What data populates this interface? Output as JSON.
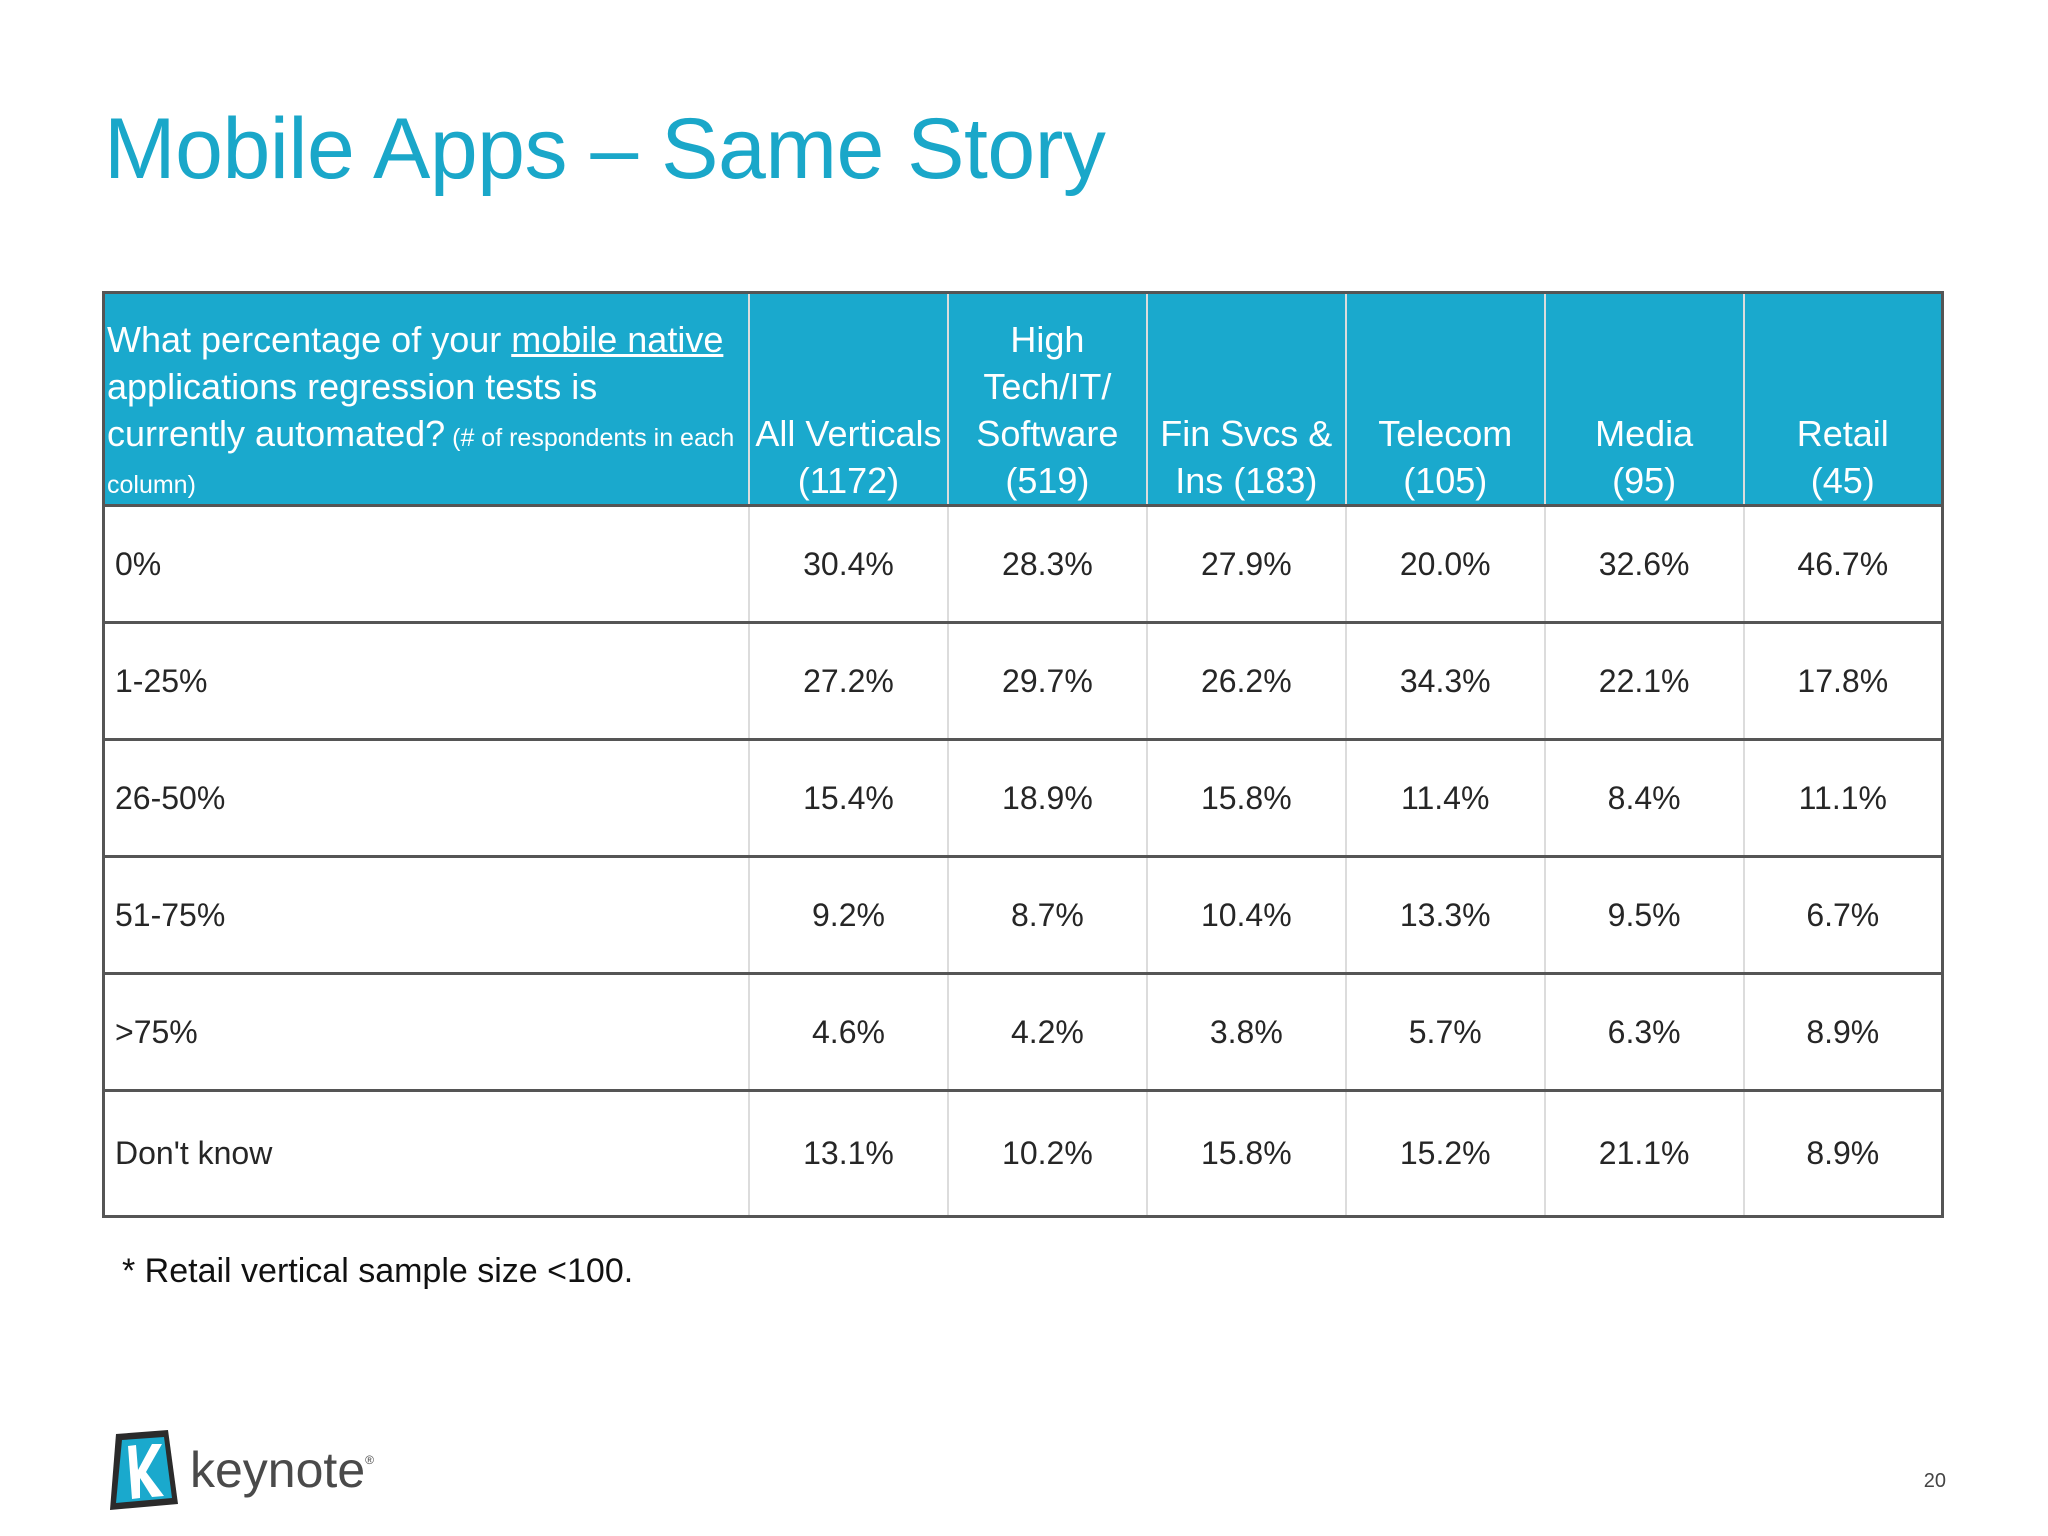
{
  "slide": {
    "title": "Mobile Apps – Same Story",
    "page_number": "20"
  },
  "table": {
    "question": {
      "text_before": "What percentage of your ",
      "text_underlined": "mobile native",
      "text_after": " applications regression tests is currently automated?",
      "note": " (# of respondents in each column)"
    },
    "columns": [
      {
        "line1": "All Verticals",
        "line2": "(1172)"
      },
      {
        "line0": "High",
        "line1a": "Tech/IT/",
        "line1": "Software",
        "line2": "(519)"
      },
      {
        "line1": "Fin Svcs &",
        "line2": "Ins (183)"
      },
      {
        "line1": "Telecom",
        "line2": "(105)"
      },
      {
        "line1": "Media",
        "line2": "(95)"
      },
      {
        "line1": "Retail",
        "line2": "(45)"
      }
    ],
    "rows": [
      {
        "label": "0%",
        "values": [
          "30.4%",
          "28.3%",
          "27.9%",
          "20.0%",
          "32.6%",
          "46.7%"
        ]
      },
      {
        "label": "1-25%",
        "values": [
          "27.2%",
          "29.7%",
          "26.2%",
          "34.3%",
          "22.1%",
          "17.8%"
        ]
      },
      {
        "label": "26-50%",
        "values": [
          "15.4%",
          "18.9%",
          "15.8%",
          "11.4%",
          "8.4%",
          "11.1%"
        ]
      },
      {
        "label": "51-75%",
        "values": [
          "9.2%",
          "8.7%",
          "10.4%",
          "13.3%",
          "9.5%",
          "6.7%"
        ]
      },
      {
        "label": ">75%",
        "values": [
          "4.6%",
          "4.2%",
          "3.8%",
          "5.7%",
          "6.3%",
          "8.9%"
        ]
      },
      {
        "label": "Don't know",
        "values": [
          "13.1%",
          "10.2%",
          "15.8%",
          "15.2%",
          "21.1%",
          "8.9%"
        ]
      }
    ]
  },
  "footnote": "* Retail vertical sample size <100.",
  "logo": {
    "icon": "keynote-k-icon",
    "text": "keynote",
    "reg_mark": "®"
  },
  "colors": {
    "title": "#1aa7c9",
    "header_bg": "#1aa9cd"
  }
}
